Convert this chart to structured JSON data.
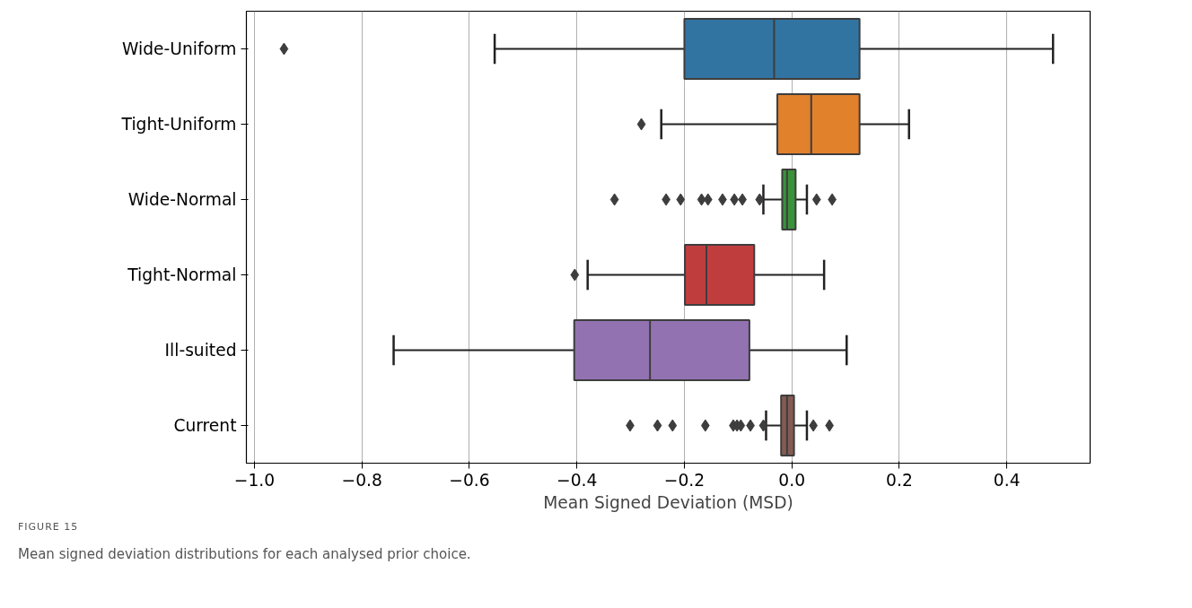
{
  "chart_data": {
    "type": "box",
    "orientation": "horizontal",
    "xlabel": "Mean Signed Deviation (MSD)",
    "categories": [
      "Wide-Uniform",
      "Tight-Uniform",
      "Wide-Normal",
      "Tight-Normal",
      "Ill-suited",
      "Current"
    ],
    "colors": [
      "#3274a1",
      "#e1812c",
      "#3a923a",
      "#c03d3e",
      "#9372b2",
      "#845b53"
    ],
    "boxes": [
      {
        "low": -0.553,
        "q1": -0.2,
        "median": -0.033,
        "q3": 0.126,
        "high": 0.486,
        "outliers": [
          -0.945
        ]
      },
      {
        "low": -0.243,
        "q1": -0.027,
        "median": 0.036,
        "q3": 0.126,
        "high": 0.218,
        "outliers": [
          -0.28
        ]
      },
      {
        "low": -0.053,
        "q1": -0.018,
        "median": -0.009,
        "q3": 0.007,
        "high": 0.028,
        "outliers": [
          -0.33,
          -0.234,
          -0.207,
          -0.168,
          -0.156,
          -0.129,
          -0.107,
          -0.092,
          -0.06,
          0.046,
          0.075
        ]
      },
      {
        "low": -0.38,
        "q1": -0.199,
        "median": -0.159,
        "q3": -0.07,
        "high": 0.06,
        "outliers": [
          -0.404
        ]
      },
      {
        "low": -0.741,
        "q1": -0.405,
        "median": -0.264,
        "q3": -0.079,
        "high": 0.102
      },
      {
        "low": -0.048,
        "q1": -0.02,
        "median": -0.009,
        "q3": 0.004,
        "high": 0.028,
        "outliers": [
          -0.301,
          -0.25,
          -0.222,
          -0.161,
          -0.109,
          -0.102,
          -0.095,
          -0.077,
          -0.053,
          0.04,
          0.07
        ]
      }
    ],
    "xlim": [
      -1.015,
      0.555
    ],
    "xticks": [
      {
        "value": -1.0,
        "label": "−1.0"
      },
      {
        "value": -0.8,
        "label": "−0.8"
      },
      {
        "value": -0.6,
        "label": "−0.6"
      },
      {
        "value": -0.4,
        "label": "−0.4"
      },
      {
        "value": -0.2,
        "label": "−0.2"
      },
      {
        "value": 0.0,
        "label": "0.0"
      },
      {
        "value": 0.2,
        "label": "0.2"
      },
      {
        "value": 0.4,
        "label": "0.4"
      }
    ],
    "grid": "x",
    "marker": "diamond",
    "annotations": [
      "FIGURE 15",
      "Mean signed deviation distributions for each analysed prior choice."
    ]
  }
}
